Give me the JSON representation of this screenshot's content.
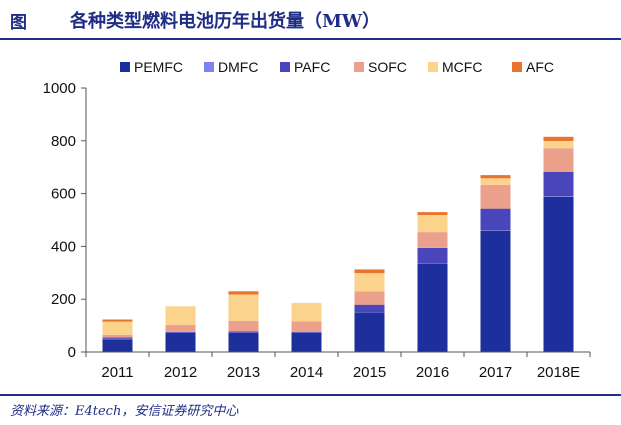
{
  "header": {
    "fig_label": "图",
    "title": "各种类型燃料电池历年出货量（MW）"
  },
  "source": "资料来源：E4tech，安信证券研究中心",
  "colors": {
    "accent": "#1f2d86",
    "PEMFC": "#1c2f9a",
    "DMFC": "#7b83f0",
    "PAFC": "#4a45b8",
    "SOFC": "#eaa08a",
    "MCFC": "#fbd38c",
    "AFC": "#e9742e"
  },
  "chart_data": {
    "type": "bar",
    "stacked": true,
    "title": "各种类型燃料电池历年出货量（MW）",
    "xlabel": "",
    "ylabel": "",
    "categories": [
      "2011",
      "2012",
      "2013",
      "2014",
      "2015",
      "2016",
      "2017",
      "2018E"
    ],
    "ylim": [
      0,
      1000
    ],
    "yticks": [
      0,
      200,
      400,
      600,
      800,
      1000
    ],
    "grid": false,
    "legend_position": "top",
    "series": [
      {
        "name": "PEMFC",
        "values": [
          48,
          72,
          72,
          72,
          150,
          335,
          460,
          588
        ]
      },
      {
        "name": "DMFC",
        "values": [
          2,
          1,
          1,
          1,
          1,
          1,
          1,
          2
        ]
      },
      {
        "name": "PAFC",
        "values": [
          5,
          3,
          5,
          3,
          28,
          58,
          82,
          92
        ]
      },
      {
        "name": "SOFC",
        "values": [
          10,
          27,
          40,
          40,
          50,
          60,
          90,
          90
        ]
      },
      {
        "name": "MCFC",
        "values": [
          50,
          70,
          100,
          70,
          70,
          65,
          25,
          27
        ]
      },
      {
        "name": "AFC",
        "values": [
          8,
          0,
          12,
          0,
          14,
          11,
          12,
          16
        ]
      }
    ]
  }
}
